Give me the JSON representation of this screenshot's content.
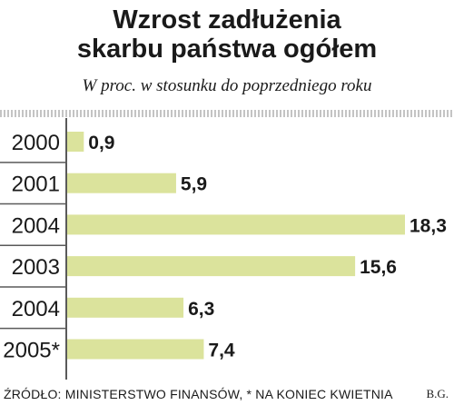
{
  "title_line1": "Wzrost zadłużenia",
  "title_line2": "skarbu państwa ogółem",
  "subtitle": "W proc. w stosunku do poprzedniego roku",
  "source": "ŹRÓDŁO: MINISTERSTWO FINANSÓW, * NA KONIEC KWIETNIA",
  "credit": "B.G.",
  "colors": {
    "bar": "#dbe39c",
    "axis": "#5a5a5a",
    "text": "#1a1a1a"
  },
  "chart_data": {
    "type": "bar",
    "orientation": "horizontal",
    "categories": [
      "2000",
      "2001",
      "2004",
      "2003",
      "2004",
      "2005*"
    ],
    "values": [
      0.9,
      5.9,
      18.3,
      15.6,
      6.3,
      7.4
    ],
    "value_labels": [
      "0,9",
      "5,9",
      "18,3",
      "15,6",
      "6,3",
      "7,4"
    ],
    "xlim": [
      0,
      18.3
    ],
    "grid": false,
    "legend": "none"
  }
}
